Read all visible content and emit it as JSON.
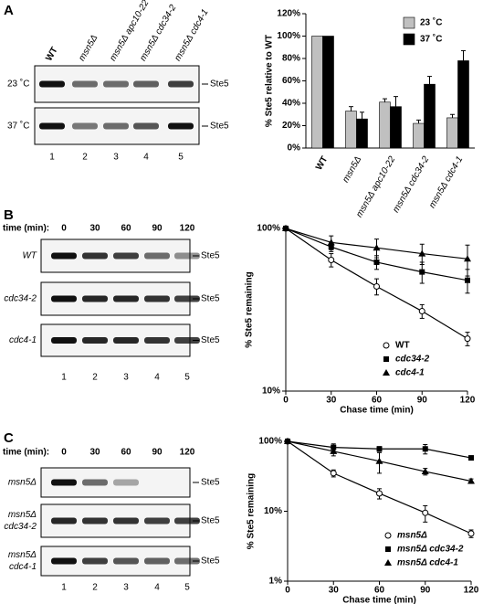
{
  "panels": [
    {
      "label": "A",
      "lanes": [
        "WT",
        "msn5Δ",
        "msn5Δ apc10-22",
        "msn5Δ cdc34-2",
        "msn5Δ cdc4-1"
      ],
      "rows": [
        [
          "23 ˚C"
        ],
        [
          "37 ˚C"
        ]
      ],
      "band": "Ste5",
      "lane_numbers": [
        "1",
        "2",
        "3",
        "4",
        "5"
      ]
    },
    {
      "label": "B",
      "time_label": "time (min):",
      "times": [
        "0",
        "30",
        "60",
        "90",
        "120"
      ],
      "rows": [
        [
          "WT"
        ],
        [
          "cdc34-2"
        ],
        [
          "cdc4-1"
        ]
      ],
      "band": "Ste5",
      "lane_numbers": [
        "1",
        "2",
        "3",
        "4",
        "5"
      ]
    },
    {
      "label": "C",
      "time_label": "time (min):",
      "times": [
        "0",
        "30",
        "60",
        "90",
        "120"
      ],
      "rows": [
        [
          "msn5Δ"
        ],
        [
          "msn5Δ",
          "cdc34-2"
        ],
        [
          "msn5Δ",
          "cdc4-1"
        ]
      ],
      "band": "Ste5",
      "lane_numbers": [
        "1",
        "2",
        "3",
        "4",
        "5"
      ]
    }
  ],
  "chart_data": [
    {
      "type": "bar",
      "y_label": "% Ste5 relative to WT",
      "categories": [
        "WT",
        "msn5Δ",
        "msn5Δ apc10-22",
        "msn5Δ cdc34-2",
        "msn5Δ cdc4-1"
      ],
      "series": [
        {
          "name": "23 ˚C",
          "color": "#c0c0c0",
          "values": [
            100,
            33,
            41,
            22,
            27
          ],
          "errors": [
            null,
            4,
            3,
            3,
            3
          ]
        },
        {
          "name": "37 ˚C",
          "color": "#000000",
          "values": [
            100,
            26,
            37,
            57,
            78
          ],
          "errors": [
            null,
            6,
            9,
            7,
            9
          ]
        }
      ],
      "ylim": [
        0,
        120
      ],
      "yticks": [
        {
          "value": 0,
          "label": "0%"
        },
        {
          "value": 20,
          "label": "20%"
        },
        {
          "value": 40,
          "label": "40%"
        },
        {
          "value": 60,
          "label": "60%"
        },
        {
          "value": 80,
          "label": "80%"
        },
        {
          "value": 100,
          "label": "100%"
        },
        {
          "value": 120,
          "label": "120%"
        }
      ],
      "legend": "upper right"
    },
    {
      "type": "line",
      "log_y": true,
      "x_label": "Chase time (min)",
      "y_label": "% Ste5 remaining",
      "x": [
        0,
        30,
        60,
        90,
        120
      ],
      "series": [
        {
          "name": "WT",
          "color": "#000000",
          "marker": "circle-open",
          "values": [
            100,
            64,
            44,
            31,
            21
          ],
          "errors": [
            null,
            6,
            5,
            3,
            2
          ]
        },
        {
          "name": "cdc34-2",
          "color": "#000000",
          "marker": "square",
          "values": [
            100,
            77,
            62,
            54,
            48
          ],
          "errors": [
            null,
            5,
            6,
            8,
            8
          ]
        },
        {
          "name": "cdc4-1",
          "color": "#000000",
          "marker": "triangle",
          "values": [
            100,
            82,
            76,
            70,
            65
          ],
          "errors": [
            null,
            8,
            10,
            10,
            14
          ]
        }
      ],
      "xlim": [
        0,
        120
      ],
      "xticks": [
        0,
        30,
        60,
        90,
        120
      ],
      "ylim": [
        10,
        100
      ],
      "yticks": [
        {
          "value": 10,
          "label": "10%"
        },
        {
          "value": 100,
          "label": "100%"
        }
      ],
      "legend": "lower right"
    },
    {
      "type": "line",
      "log_y": true,
      "x_label": "Chase time (min)",
      "y_label": "% Ste5 remaining",
      "x": [
        0,
        30,
        60,
        90,
        120
      ],
      "series": [
        {
          "name": "msn5Δ",
          "color": "#000000",
          "marker": "circle-open",
          "values": [
            100,
            35,
            18,
            9.5,
            4.8
          ],
          "errors": [
            null,
            4,
            3,
            2.5,
            0.6
          ]
        },
        {
          "name": "msn5Δ cdc34-2",
          "color": "#000000",
          "marker": "square",
          "values": [
            100,
            82,
            78,
            78,
            58
          ],
          "errors": [
            null,
            10,
            6,
            12,
            4
          ]
        },
        {
          "name": "msn5Δ cdc4-1",
          "color": "#000000",
          "marker": "triangle",
          "values": [
            100,
            72,
            52,
            37,
            27
          ],
          "errors": [
            null,
            10,
            17,
            4,
            2
          ]
        }
      ],
      "xlim": [
        0,
        120
      ],
      "xticks": [
        0,
        30,
        60,
        90,
        120
      ],
      "ylim": [
        1,
        100
      ],
      "yticks": [
        {
          "value": 1,
          "label": "1%"
        },
        {
          "value": 10,
          "label": "10%"
        },
        {
          "value": 100,
          "label": "100%"
        }
      ],
      "legend": "lower right"
    }
  ]
}
